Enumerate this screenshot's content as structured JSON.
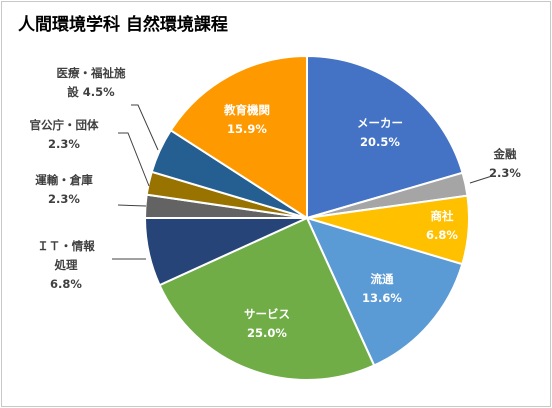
{
  "chart_data": {
    "type": "pie",
    "title": "人間環境学科 自然環境課程",
    "slices": [
      {
        "name": "メーカー",
        "value": 20.5,
        "display": "20.5%",
        "color": "#4472c4",
        "label_lines": [
          "メーカー"
        ],
        "value_inline": false,
        "label_inside": true
      },
      {
        "name": "金融",
        "value": 2.3,
        "display": "2.3%",
        "color": "#a5a5a5",
        "label_lines": [
          "金融"
        ],
        "value_inline": false,
        "label_inside": false
      },
      {
        "name": "商社",
        "value": 6.8,
        "display": "6.8%",
        "color": "#ffc000",
        "label_lines": [
          "商社"
        ],
        "value_inline": false,
        "label_inside": true
      },
      {
        "name": "流通",
        "value": 13.6,
        "display": "13.6%",
        "color": "#5b9bd5",
        "label_lines": [
          "流通"
        ],
        "value_inline": false,
        "label_inside": true
      },
      {
        "name": "サービス",
        "value": 25.0,
        "display": "25.0%",
        "color": "#70ad47",
        "label_lines": [
          "サービス"
        ],
        "value_inline": false,
        "label_inside": true
      },
      {
        "name": "ＩＴ・情報処理",
        "value": 6.8,
        "display": "6.8%",
        "color": "#264478",
        "label_lines": [
          "ＩＴ・情報",
          "処理"
        ],
        "value_inline": false,
        "label_inside": false
      },
      {
        "name": "運輸・倉庫",
        "value": 2.3,
        "display": "2.3%",
        "color": "#636363",
        "label_lines": [
          "運輸・倉庫"
        ],
        "value_inline": false,
        "label_inside": false
      },
      {
        "name": "官公庁・団体",
        "value": 2.3,
        "display": "2.3%",
        "color": "#997300",
        "label_lines": [
          "官公庁・団体"
        ],
        "value_inline": false,
        "label_inside": false
      },
      {
        "name": "医療・福祉施設",
        "value": 4.5,
        "display": "4.5%",
        "color": "#255e91",
        "label_lines": [
          "医療・福祉施",
          "設"
        ],
        "value_inline": true,
        "label_inside": false
      },
      {
        "name": "教育機関",
        "value": 15.9,
        "display": "15.9%",
        "color": "#ff9900",
        "label_lines": [
          "教育機関"
        ],
        "value_inline": false,
        "label_inside": true
      }
    ]
  }
}
